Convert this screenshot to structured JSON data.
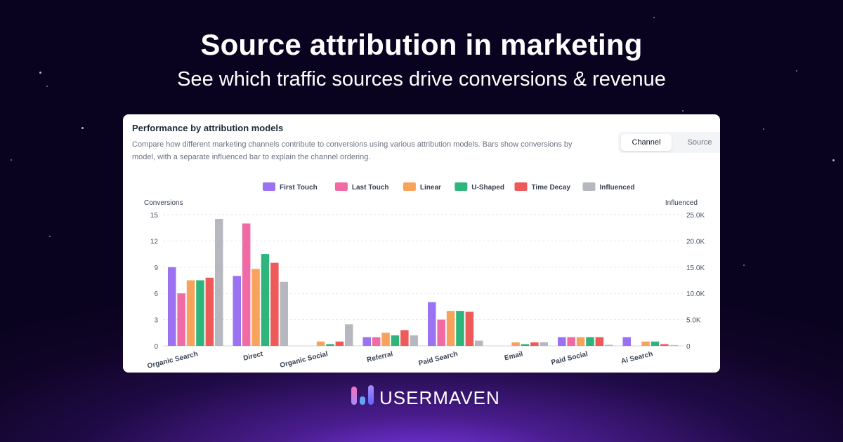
{
  "hero": {
    "title": "Source attribution in marketing",
    "subtitle": "See which traffic sources drive conversions & revenue"
  },
  "card": {
    "title": "Performance by attribution models",
    "description": "Compare how different marketing channels contribute to conversions using various attribution models. Bars show conversions by model, with a separate influenced bar to explain the channel ordering.",
    "toggle": {
      "options": [
        "Channel",
        "Source"
      ],
      "selected": "Channel"
    }
  },
  "brand": {
    "name": "USERMAVEN"
  },
  "colors": {
    "bg_dark": "#0f0426",
    "bg_glow": "#7c3aed",
    "first_touch": "#9b72f2",
    "last_touch": "#f06ba5",
    "linear": "#f7a35c",
    "u_shaped": "#2fb57c",
    "time_decay": "#ee5a5a",
    "influenced": "#b5b9bf"
  },
  "chart_data": {
    "type": "bar",
    "categories": [
      "Organic Search",
      "Direct",
      "Organic Social",
      "Referral",
      "Paid Search",
      "Email",
      "Paid Social",
      "Ai Search"
    ],
    "series": [
      {
        "name": "First Touch",
        "axis": "left",
        "color": "#9b72f2",
        "values": [
          9,
          8,
          0,
          1,
          5,
          0,
          1,
          1
        ]
      },
      {
        "name": "Last Touch",
        "axis": "left",
        "color": "#f06ba5",
        "values": [
          6,
          14,
          0,
          1,
          3,
          0,
          1,
          0
        ]
      },
      {
        "name": "Linear",
        "axis": "left",
        "color": "#f7a35c",
        "values": [
          7.5,
          8.8,
          0.5,
          1.5,
          4,
          0.4,
          1,
          0.5
        ]
      },
      {
        "name": "U-Shaped",
        "axis": "left",
        "color": "#2fb57c",
        "values": [
          7.5,
          10.5,
          0.2,
          1.2,
          4,
          0.2,
          1,
          0.5
        ]
      },
      {
        "name": "Time Decay",
        "axis": "left",
        "color": "#ee5a5a",
        "values": [
          7.8,
          9.5,
          0.5,
          1.8,
          3.9,
          0.4,
          1,
          0.2
        ]
      },
      {
        "name": "Influenced",
        "axis": "right",
        "color": "#b5b9bf",
        "values": [
          24200,
          12200,
          4100,
          2000,
          1000,
          700,
          200,
          150
        ]
      }
    ],
    "y_left": {
      "label": "Conversions",
      "ticks": [
        "0",
        "3",
        "6",
        "9",
        "12",
        "15"
      ],
      "range": [
        0,
        15
      ]
    },
    "y_right": {
      "label": "Influenced",
      "ticks": [
        "0",
        "5.0K",
        "10.0K",
        "15.0K",
        "20.0K",
        "25.0K"
      ],
      "range": [
        0,
        25000
      ]
    },
    "legend_position": "top-center",
    "grid": true
  }
}
